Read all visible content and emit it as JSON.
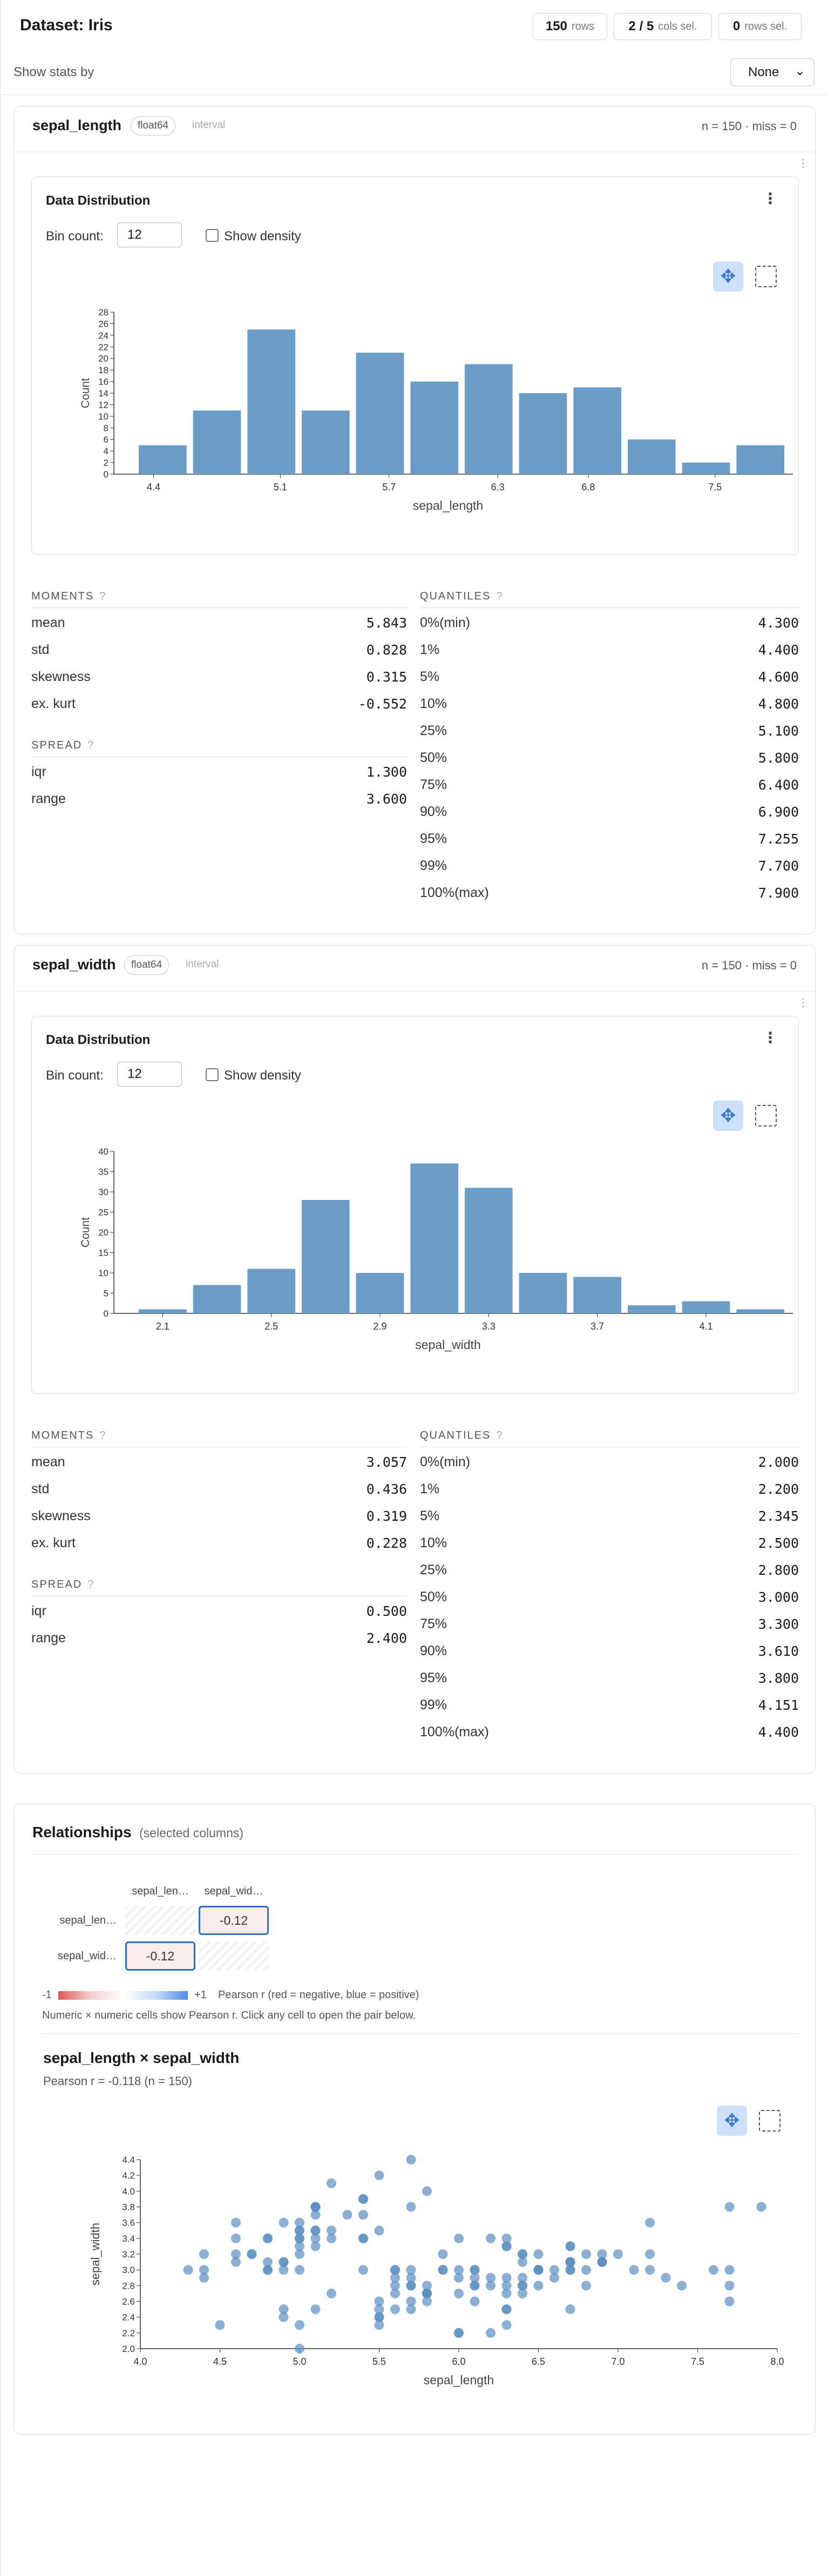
{
  "header": {
    "title": "Dataset: Iris",
    "rows_count": "150",
    "rows_label": "rows",
    "cols_count": "2 / 5",
    "cols_label": "cols sel.",
    "sel_count": "0",
    "sel_label": "rows sel."
  },
  "stats_by": {
    "label": "Show stats by",
    "value": "None"
  },
  "columns": [
    {
      "name": "sepal_length",
      "dtype": "float64",
      "kind": "interval",
      "n_miss": "n = 150 · miss = 0",
      "panel_title": "Data Distribution",
      "bin_label": "Bin count:",
      "bin_value": "12",
      "density_label": "Show density",
      "moments_title": "MOMENTS",
      "spread_title": "SPREAD",
      "quantiles_title": "QUANTILES",
      "help": "?",
      "moments": [
        {
          "label": "mean",
          "value": "5.843"
        },
        {
          "label": "std",
          "value": "0.828"
        },
        {
          "label": "skewness",
          "value": "0.315"
        },
        {
          "label": "ex. kurt",
          "value": "-0.552"
        }
      ],
      "spread": [
        {
          "label": "iqr",
          "value": "1.300"
        },
        {
          "label": "range",
          "value": "3.600"
        }
      ],
      "quantiles": [
        {
          "label": "0%(min)",
          "value": "4.300"
        },
        {
          "label": "1%",
          "value": "4.400"
        },
        {
          "label": "5%",
          "value": "4.600"
        },
        {
          "label": "10%",
          "value": "4.800"
        },
        {
          "label": "25%",
          "value": "5.100"
        },
        {
          "label": "50%",
          "value": "5.800"
        },
        {
          "label": "75%",
          "value": "6.400"
        },
        {
          "label": "90%",
          "value": "6.900"
        },
        {
          "label": "95%",
          "value": "7.255"
        },
        {
          "label": "99%",
          "value": "7.700"
        },
        {
          "label": "100%(max)",
          "value": "7.900"
        }
      ]
    },
    {
      "name": "sepal_width",
      "dtype": "float64",
      "kind": "interval",
      "n_miss": "n = 150 · miss = 0",
      "panel_title": "Data Distribution",
      "bin_label": "Bin count:",
      "bin_value": "12",
      "density_label": "Show density",
      "moments_title": "MOMENTS",
      "spread_title": "SPREAD",
      "quantiles_title": "QUANTILES",
      "help": "?",
      "moments": [
        {
          "label": "mean",
          "value": "3.057"
        },
        {
          "label": "std",
          "value": "0.436"
        },
        {
          "label": "skewness",
          "value": "0.319"
        },
        {
          "label": "ex. kurt",
          "value": "0.228"
        }
      ],
      "spread": [
        {
          "label": "iqr",
          "value": "0.500"
        },
        {
          "label": "range",
          "value": "2.400"
        }
      ],
      "quantiles": [
        {
          "label": "0%(min)",
          "value": "2.000"
        },
        {
          "label": "1%",
          "value": "2.200"
        },
        {
          "label": "5%",
          "value": "2.345"
        },
        {
          "label": "10%",
          "value": "2.500"
        },
        {
          "label": "25%",
          "value": "2.800"
        },
        {
          "label": "50%",
          "value": "3.000"
        },
        {
          "label": "75%",
          "value": "3.300"
        },
        {
          "label": "90%",
          "value": "3.610"
        },
        {
          "label": "95%",
          "value": "3.800"
        },
        {
          "label": "99%",
          "value": "4.151"
        },
        {
          "label": "100%(max)",
          "value": "4.400"
        }
      ]
    }
  ],
  "relationships": {
    "title": "Relationships",
    "subtitle": "(selected columns)",
    "matrix_cols": [
      "sepal_len…",
      "sepal_wid…"
    ],
    "matrix_rows": [
      "sepal_len…",
      "sepal_wid…"
    ],
    "matrix_values": [
      "-0.12",
      "-0.12"
    ],
    "legend_min": "-1",
    "legend_max": "+1",
    "legend_text": "Pearson r (red = negative, blue = positive)",
    "note": "Numeric × numeric cells show Pearson r. Click any cell to open the pair below.",
    "pair_title": "sepal_length × sepal_width",
    "pair_sub": "Pearson r = -0.118 (n = 150)"
  },
  "chart_data": [
    {
      "type": "bar",
      "title": "",
      "xlabel": "sepal_length",
      "ylabel": "Count",
      "bin_edges": [
        4.3,
        4.6,
        4.9,
        5.2,
        5.5,
        5.8,
        6.1,
        6.4,
        6.7,
        7.0,
        7.3,
        7.6,
        7.9
      ],
      "values": [
        5,
        11,
        25,
        11,
        21,
        16,
        19,
        14,
        15,
        6,
        2,
        5
      ],
      "xticks": [
        "4.4",
        "5.1",
        "5.7",
        "6.3",
        "6.8",
        "7.5"
      ],
      "ylim": [
        0,
        28
      ],
      "yticks": [
        "0",
        "2",
        "4",
        "6",
        "8",
        "10",
        "12",
        "14",
        "16",
        "18",
        "20",
        "22",
        "24",
        "26",
        "28"
      ],
      "color": "#6b9cc8"
    },
    {
      "type": "bar",
      "title": "",
      "xlabel": "sepal_width",
      "ylabel": "Count",
      "bin_edges": [
        2.0,
        2.2,
        2.4,
        2.6,
        2.8,
        3.0,
        3.2,
        3.4,
        3.6,
        3.8,
        4.0,
        4.2,
        4.4
      ],
      "values": [
        1,
        7,
        11,
        28,
        10,
        37,
        31,
        10,
        9,
        2,
        3,
        1
      ],
      "xticks": [
        "2.1",
        "2.5",
        "2.9",
        "3.3",
        "3.7",
        "4.1"
      ],
      "ylim": [
        0,
        40
      ],
      "yticks": [
        "0",
        "5",
        "10",
        "15",
        "20",
        "25",
        "30",
        "35",
        "40"
      ],
      "color": "#6b9cc8"
    },
    {
      "type": "scatter",
      "title": "",
      "xlabel": "sepal_length",
      "ylabel": "sepal_width",
      "xlim": [
        4.0,
        8.0
      ],
      "ylim": [
        2.0,
        4.4
      ],
      "xticks": [
        "4.0",
        "4.5",
        "5.0",
        "5.5",
        "6.0",
        "6.5",
        "7.0",
        "7.5",
        "8.0"
      ],
      "yticks": [
        "2.0",
        "2.2",
        "2.4",
        "2.6",
        "2.8",
        "3.0",
        "3.2",
        "3.4",
        "3.6",
        "3.8",
        "4.0",
        "4.2",
        "4.4"
      ],
      "color": "#5a8ec0",
      "points": [
        [
          5.1,
          3.5
        ],
        [
          4.9,
          3.0
        ],
        [
          4.7,
          3.2
        ],
        [
          4.6,
          3.1
        ],
        [
          5.0,
          3.6
        ],
        [
          5.4,
          3.9
        ],
        [
          4.6,
          3.4
        ],
        [
          5.0,
          3.4
        ],
        [
          4.4,
          2.9
        ],
        [
          4.9,
          3.1
        ],
        [
          5.4,
          3.7
        ],
        [
          4.8,
          3.4
        ],
        [
          4.8,
          3.0
        ],
        [
          4.3,
          3.0
        ],
        [
          5.8,
          4.0
        ],
        [
          5.7,
          4.4
        ],
        [
          5.4,
          3.9
        ],
        [
          5.1,
          3.5
        ],
        [
          5.7,
          3.8
        ],
        [
          5.1,
          3.8
        ],
        [
          5.4,
          3.4
        ],
        [
          5.1,
          3.7
        ],
        [
          4.6,
          3.6
        ],
        [
          5.1,
          3.3
        ],
        [
          4.8,
          3.4
        ],
        [
          5.0,
          3.0
        ],
        [
          5.0,
          3.4
        ],
        [
          5.2,
          3.5
        ],
        [
          5.2,
          3.4
        ],
        [
          4.7,
          3.2
        ],
        [
          4.8,
          3.1
        ],
        [
          5.4,
          3.4
        ],
        [
          5.2,
          4.1
        ],
        [
          5.5,
          4.2
        ],
        [
          4.9,
          3.1
        ],
        [
          5.0,
          3.2
        ],
        [
          5.5,
          3.5
        ],
        [
          4.9,
          3.6
        ],
        [
          4.4,
          3.0
        ],
        [
          5.1,
          3.4
        ],
        [
          5.0,
          3.5
        ],
        [
          4.5,
          2.3
        ],
        [
          4.4,
          3.2
        ],
        [
          5.0,
          3.5
        ],
        [
          5.1,
          3.8
        ],
        [
          4.8,
          3.0
        ],
        [
          5.1,
          3.8
        ],
        [
          4.6,
          3.2
        ],
        [
          5.3,
          3.7
        ],
        [
          5.0,
          3.3
        ],
        [
          7.0,
          3.2
        ],
        [
          6.4,
          3.2
        ],
        [
          6.9,
          3.1
        ],
        [
          5.5,
          2.3
        ],
        [
          6.5,
          2.8
        ],
        [
          5.7,
          2.8
        ],
        [
          6.3,
          3.3
        ],
        [
          4.9,
          2.4
        ],
        [
          6.6,
          2.9
        ],
        [
          5.2,
          2.7
        ],
        [
          5.0,
          2.0
        ],
        [
          5.9,
          3.0
        ],
        [
          6.0,
          2.2
        ],
        [
          6.1,
          2.9
        ],
        [
          5.6,
          2.9
        ],
        [
          6.7,
          3.1
        ],
        [
          5.6,
          3.0
        ],
        [
          5.8,
          2.7
        ],
        [
          6.2,
          2.2
        ],
        [
          5.6,
          2.5
        ],
        [
          5.9,
          3.2
        ],
        [
          6.1,
          2.8
        ],
        [
          6.3,
          2.5
        ],
        [
          6.1,
          2.8
        ],
        [
          6.4,
          2.9
        ],
        [
          6.6,
          3.0
        ],
        [
          6.8,
          2.8
        ],
        [
          6.7,
          3.0
        ],
        [
          6.0,
          2.9
        ],
        [
          5.7,
          2.6
        ],
        [
          5.5,
          2.4
        ],
        [
          5.5,
          2.4
        ],
        [
          5.8,
          2.7
        ],
        [
          6.0,
          2.7
        ],
        [
          5.4,
          3.0
        ],
        [
          6.0,
          3.4
        ],
        [
          6.7,
          3.1
        ],
        [
          6.3,
          2.3
        ],
        [
          5.6,
          3.0
        ],
        [
          5.5,
          2.5
        ],
        [
          5.5,
          2.6
        ],
        [
          6.1,
          3.0
        ],
        [
          5.8,
          2.6
        ],
        [
          5.0,
          2.3
        ],
        [
          5.6,
          2.7
        ],
        [
          5.7,
          3.0
        ],
        [
          5.7,
          2.9
        ],
        [
          6.2,
          2.9
        ],
        [
          5.1,
          2.5
        ],
        [
          5.7,
          2.8
        ],
        [
          6.3,
          3.3
        ],
        [
          5.8,
          2.7
        ],
        [
          7.1,
          3.0
        ],
        [
          6.3,
          2.9
        ],
        [
          6.5,
          3.0
        ],
        [
          7.6,
          3.0
        ],
        [
          4.9,
          2.5
        ],
        [
          7.3,
          2.9
        ],
        [
          6.7,
          2.5
        ],
        [
          7.2,
          3.6
        ],
        [
          6.5,
          3.2
        ],
        [
          6.4,
          2.7
        ],
        [
          6.8,
          3.0
        ],
        [
          5.7,
          2.5
        ],
        [
          5.8,
          2.8
        ],
        [
          6.4,
          3.2
        ],
        [
          6.5,
          3.0
        ],
        [
          7.7,
          3.8
        ],
        [
          7.7,
          2.6
        ],
        [
          6.0,
          2.2
        ],
        [
          6.9,
          3.2
        ],
        [
          5.6,
          2.8
        ],
        [
          7.7,
          2.8
        ],
        [
          6.3,
          2.7
        ],
        [
          6.7,
          3.3
        ],
        [
          7.2,
          3.2
        ],
        [
          6.2,
          2.8
        ],
        [
          6.1,
          3.0
        ],
        [
          6.4,
          2.8
        ],
        [
          7.2,
          3.0
        ],
        [
          7.4,
          2.8
        ],
        [
          7.9,
          3.8
        ],
        [
          6.4,
          2.8
        ],
        [
          6.3,
          2.8
        ],
        [
          6.1,
          2.6
        ],
        [
          7.7,
          3.0
        ],
        [
          6.3,
          3.4
        ],
        [
          6.4,
          3.1
        ],
        [
          6.0,
          3.0
        ],
        [
          6.9,
          3.1
        ],
        [
          6.7,
          3.1
        ],
        [
          6.9,
          3.1
        ],
        [
          5.8,
          2.7
        ],
        [
          6.8,
          3.2
        ],
        [
          6.7,
          3.3
        ],
        [
          6.7,
          3.0
        ],
        [
          6.3,
          2.5
        ],
        [
          6.5,
          3.0
        ],
        [
          6.2,
          3.4
        ],
        [
          5.9,
          3.0
        ]
      ]
    }
  ]
}
